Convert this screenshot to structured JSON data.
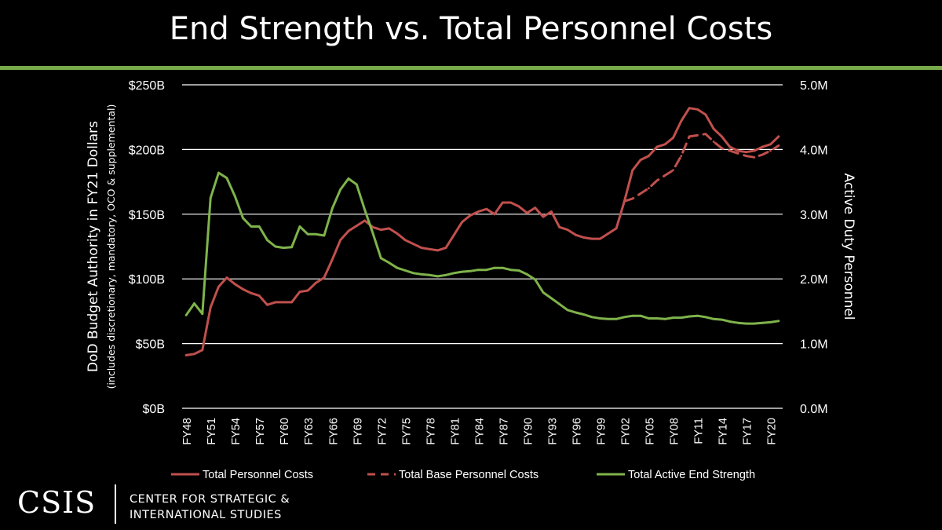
{
  "title": "End Strength vs. Total Personnel Costs",
  "logo": {
    "mark": "CSIS",
    "org_line1": "CENTER FOR STRATEGIC &",
    "org_line2": "INTERNATIONAL STUDIES"
  },
  "colors": {
    "accent_bar": "#78a94a",
    "total_personnel": "#c0504d",
    "base_personnel": "#c0504d",
    "end_strength": "#7fb34b",
    "grid": "#ffffff"
  },
  "chart_data": {
    "type": "line",
    "title": "End Strength vs. Total Personnel Costs",
    "ylabel": "DoD Budget Authority in FY21 Dollars",
    "ylabel_sub": "(includes discretionary, mandatory, OCO & supplemental)",
    "y2label": "Active Duty Personnel",
    "ylim": [
      0,
      250
    ],
    "y2lim": [
      0,
      5.0
    ],
    "yticks": [
      "$0B",
      "$50B",
      "$100B",
      "$150B",
      "$200B",
      "$250B"
    ],
    "y2ticks": [
      "0.0M",
      "1.0M",
      "2.0M",
      "3.0M",
      "4.0M",
      "5.0M"
    ],
    "xticks": [
      "FY48",
      "FY51",
      "FY54",
      "FY57",
      "FY60",
      "FY63",
      "FY66",
      "FY69",
      "FY72",
      "FY75",
      "FY78",
      "FY81",
      "FY84",
      "FY87",
      "FY90",
      "FY93",
      "FY96",
      "FY99",
      "FY02",
      "FY05",
      "FY08",
      "FY11",
      "FY14",
      "FY17",
      "FY20"
    ],
    "grid": true,
    "legend_position": "bottom",
    "x_start_year": 1948,
    "x_end_year": 2021,
    "series": [
      {
        "name": "Total Personnel Costs",
        "axis": "left",
        "style": "solid",
        "start_year": 1948,
        "values": [
          41,
          42,
          45,
          78,
          94,
          101,
          96,
          92,
          89,
          87,
          80,
          82,
          82,
          82,
          90,
          91,
          97,
          101,
          115,
          130,
          137,
          141,
          145,
          140,
          138,
          139,
          135,
          130,
          127,
          124,
          123,
          122,
          124,
          134,
          144,
          149,
          152,
          154,
          150,
          159,
          159,
          156,
          151,
          155,
          148,
          152,
          140,
          138,
          134,
          132,
          131,
          131,
          135,
          139,
          160,
          184,
          192,
          195,
          202,
          204,
          209,
          222,
          232,
          231,
          227,
          216,
          210,
          202,
          199,
          198,
          199,
          202,
          204,
          210
        ]
      },
      {
        "name": "Total Base Personnel Costs",
        "axis": "left",
        "style": "dashed",
        "start_year": 2002,
        "values": [
          160,
          162,
          166,
          170,
          176,
          180,
          184,
          195,
          210,
          211,
          212,
          206,
          201,
          199,
          197,
          195,
          194,
          196,
          199,
          203
        ]
      },
      {
        "name": "Total Active End Strength",
        "axis": "right",
        "style": "solid",
        "start_year": 1948,
        "values": [
          1.44,
          1.62,
          1.46,
          3.25,
          3.64,
          3.56,
          3.28,
          2.94,
          2.81,
          2.81,
          2.6,
          2.5,
          2.48,
          2.49,
          2.81,
          2.69,
          2.69,
          2.67,
          3.09,
          3.38,
          3.55,
          3.46,
          3.07,
          2.71,
          2.32,
          2.25,
          2.17,
          2.13,
          2.09,
          2.07,
          2.06,
          2.04,
          2.06,
          2.09,
          2.11,
          2.12,
          2.14,
          2.14,
          2.17,
          2.17,
          2.14,
          2.13,
          2.07,
          1.99,
          1.79,
          1.7,
          1.61,
          1.52,
          1.48,
          1.45,
          1.41,
          1.39,
          1.38,
          1.38,
          1.41,
          1.43,
          1.43,
          1.39,
          1.39,
          1.38,
          1.4,
          1.4,
          1.42,
          1.43,
          1.41,
          1.38,
          1.37,
          1.34,
          1.32,
          1.31,
          1.31,
          1.32,
          1.33,
          1.35
        ]
      }
    ]
  }
}
